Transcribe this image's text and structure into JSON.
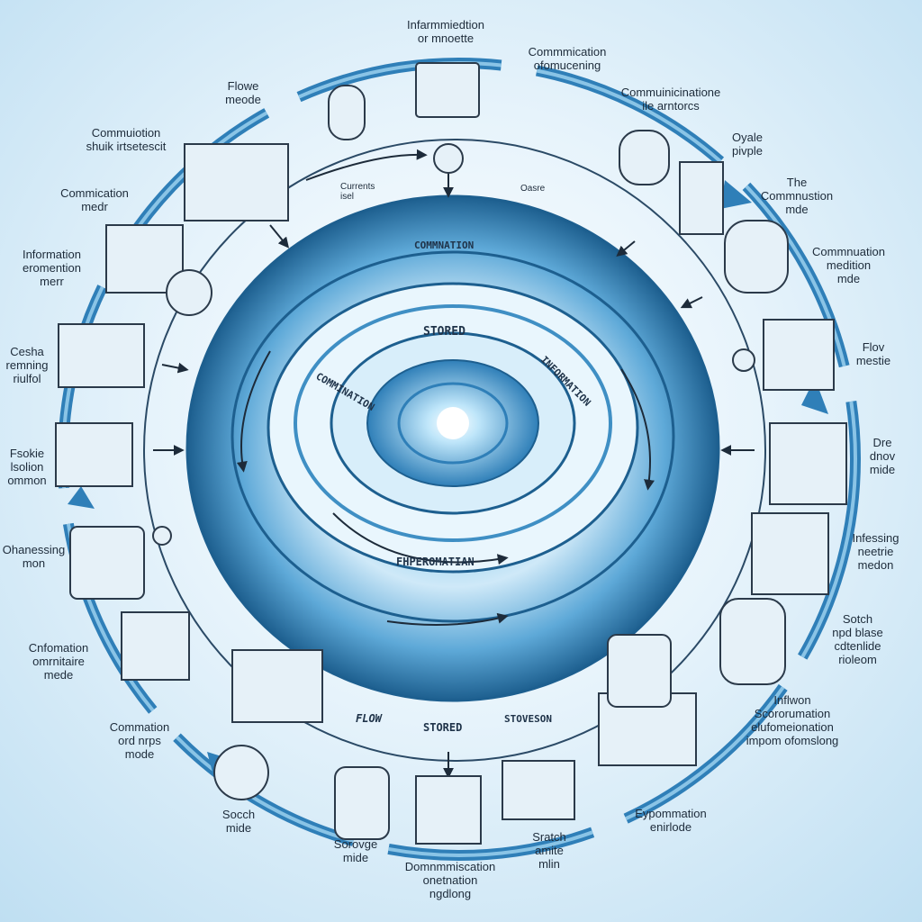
{
  "colors": {
    "ring_dark": "#1d5f8f",
    "ring_mid": "#3f8fc4",
    "ring_light": "#bfe1f5",
    "arrow_blue": "#2f7fb8",
    "ink": "#1d2b3a"
  },
  "center": {
    "ring_outer_label": "COMMNATION",
    "ring_inner_top_label": "STORED",
    "ring_left_label": "COMMINATION",
    "ring_right_label": "INFORMATION",
    "ring_bottom_label": "FHPEROMATIAN",
    "inner_small_left": "Currents\nisel",
    "inner_small_right": "Oasre",
    "bottom_flow": "FLOW",
    "bottom_stored": "STORED",
    "bottom_storeson": "STOVESON"
  },
  "nodes": [
    {
      "id": "top",
      "label": "Infarmmiedtion\nor mnoette"
    },
    {
      "id": "top-right-1",
      "label": "Commmication\nofomucening"
    },
    {
      "id": "top-right-2",
      "label": "Commuinicinatione\nile arntorcs"
    },
    {
      "id": "right-1",
      "label": "Oyale\npivple"
    },
    {
      "id": "right-2",
      "label": "The\nCommnustion\nmde"
    },
    {
      "id": "right-3",
      "label": "Commnuation\nmedition\nmde"
    },
    {
      "id": "right-4",
      "label": "Flov\nmestie"
    },
    {
      "id": "right-5",
      "label": "Dre\ndnov\nmide"
    },
    {
      "id": "right-6",
      "label": "Infessing\nneetrie\nmedon"
    },
    {
      "id": "right-7",
      "label": "Sotch\nnpd blase\ncdtenlide\nrioleom"
    },
    {
      "id": "right-8",
      "label": "Inflwon\nScororumation\nelufomeionation\nimpom ofomslong"
    },
    {
      "id": "bottom-right",
      "label": "Eypommation\nenirlode"
    },
    {
      "id": "bottom-center-right",
      "label": "Sratch\namite\nmlin"
    },
    {
      "id": "bottom-center",
      "label": "Domnmmiscation\nonetnation\nngdlong"
    },
    {
      "id": "bottom-center-left",
      "label": "Sorovge\nmide"
    },
    {
      "id": "bottom-left",
      "label": "Socch\nmide"
    },
    {
      "id": "left-1",
      "label": "Commation\nord nrps\nmode"
    },
    {
      "id": "left-2",
      "label": "Cnfomation\nomrnitaire\nmede"
    },
    {
      "id": "left-3",
      "label": "Ohanessing\nmon"
    },
    {
      "id": "left-4",
      "label": "Fsokie\nlsolion\nommon"
    },
    {
      "id": "left-5",
      "label": "Cesha\nremning\nriulfol"
    },
    {
      "id": "left-6",
      "label": "Information\neromention\nmerr"
    },
    {
      "id": "left-7",
      "label": "Commication\nmedr"
    },
    {
      "id": "left-8",
      "label": "Commuiotion\nshuik irtsetescit"
    },
    {
      "id": "top-left",
      "label": "Flowe\nmeode"
    }
  ]
}
